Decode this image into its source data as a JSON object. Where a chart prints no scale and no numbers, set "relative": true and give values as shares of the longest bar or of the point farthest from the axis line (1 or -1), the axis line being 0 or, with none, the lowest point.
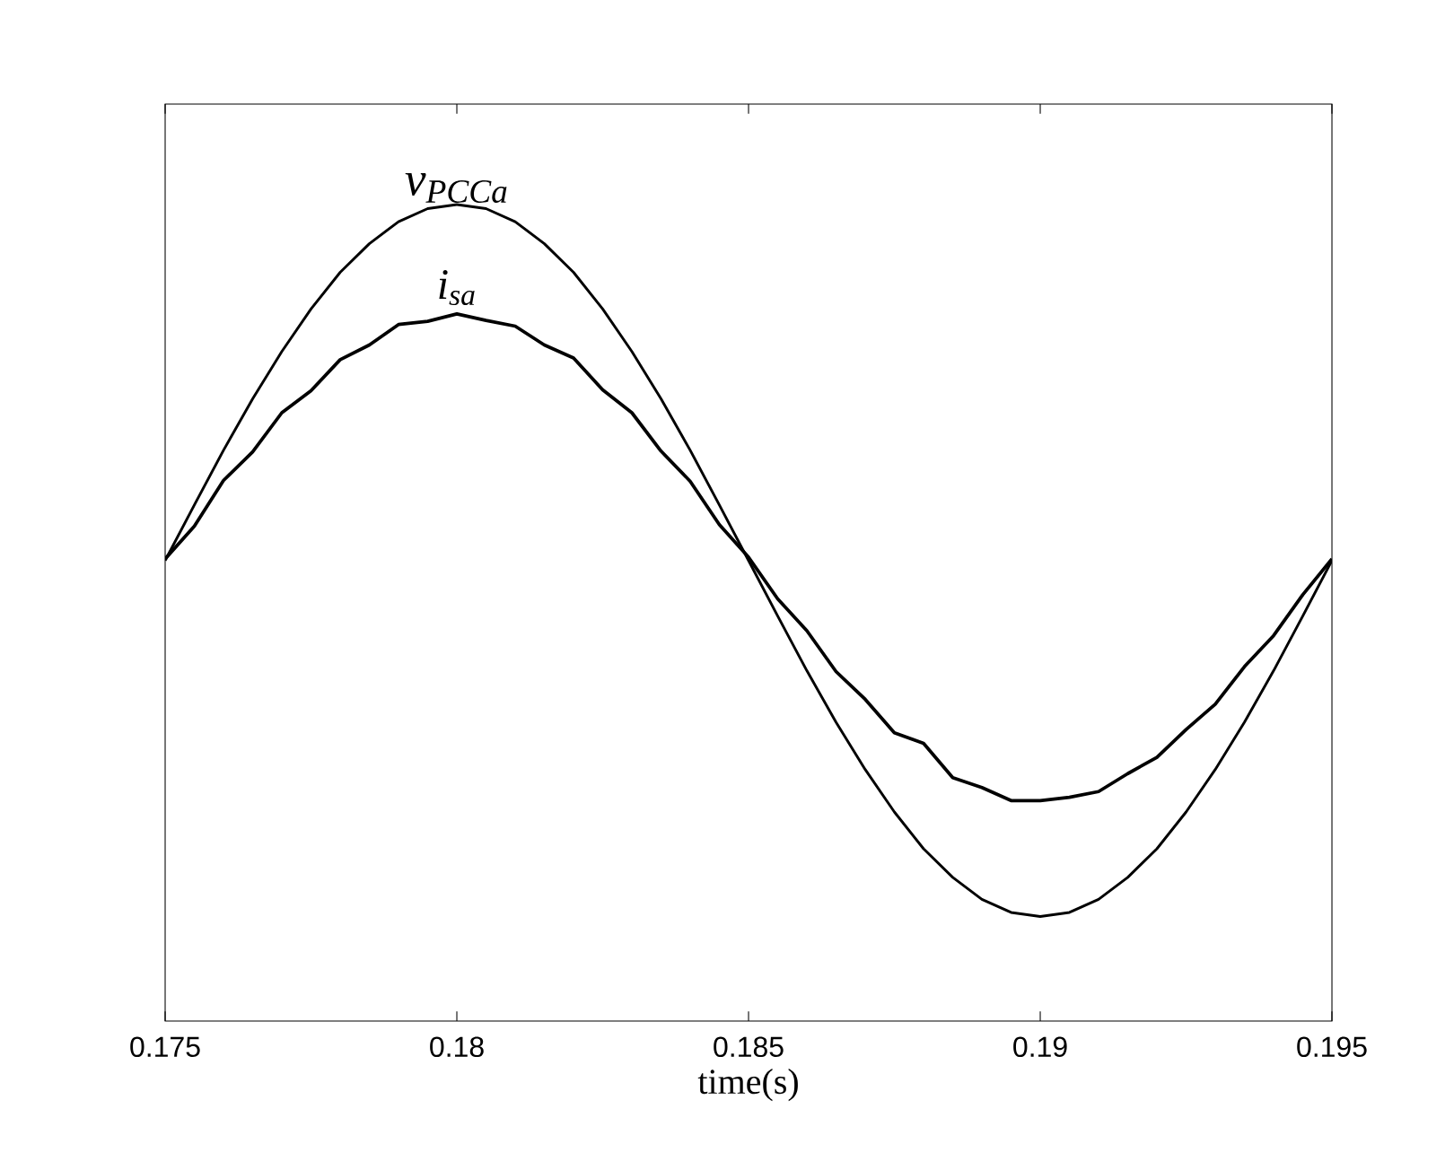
{
  "chart_data": {
    "type": "line",
    "relative": true,
    "xlabel": "time(s)",
    "tick_labels": "x",
    "legend": false,
    "grid": false,
    "x": [
      0.175,
      0.1755,
      0.176,
      0.1765,
      0.177,
      0.1775,
      0.178,
      0.1785,
      0.179,
      0.1795,
      0.18,
      0.1805,
      0.181,
      0.1815,
      0.182,
      0.1825,
      0.183,
      0.1835,
      0.184,
      0.1845,
      0.185,
      0.1855,
      0.186,
      0.1865,
      0.187,
      0.1875,
      0.188,
      0.1885,
      0.189,
      0.1895,
      0.19,
      0.1905,
      0.191,
      0.1915,
      0.192,
      0.1925,
      0.193,
      0.1935,
      0.194,
      0.1945,
      0.195
    ],
    "xlim": [
      0.175,
      0.195
    ],
    "xticks": [
      0.175,
      0.18,
      0.185,
      0.19,
      0.195
    ],
    "series": [
      {
        "name": "v$_{PCCa}$",
        "color": "#000000",
        "values": [
          0.564,
          0.632,
          0.699,
          0.762,
          0.82,
          0.872,
          0.917,
          0.952,
          0.979,
          0.995,
          1.0,
          0.995,
          0.979,
          0.952,
          0.917,
          0.872,
          0.82,
          0.762,
          0.699,
          0.632,
          0.564,
          0.496,
          0.429,
          0.366,
          0.308,
          0.256,
          0.211,
          0.176,
          0.149,
          0.133,
          0.128,
          0.133,
          0.149,
          0.176,
          0.211,
          0.256,
          0.308,
          0.366,
          0.429,
          0.496,
          0.564
        ]
      },
      {
        "name": "i$_{sa}$",
        "color": "#000000",
        "values": [
          0.566,
          0.606,
          0.662,
          0.697,
          0.745,
          0.772,
          0.81,
          0.828,
          0.853,
          0.857,
          0.866,
          0.858,
          0.851,
          0.828,
          0.812,
          0.773,
          0.745,
          0.698,
          0.661,
          0.608,
          0.568,
          0.517,
          0.478,
          0.428,
          0.394,
          0.353,
          0.34,
          0.298,
          0.286,
          0.27,
          0.27,
          0.274,
          0.281,
          0.303,
          0.323,
          0.357,
          0.388,
          0.434,
          0.472,
          0.522,
          0.566
        ]
      }
    ]
  }
}
